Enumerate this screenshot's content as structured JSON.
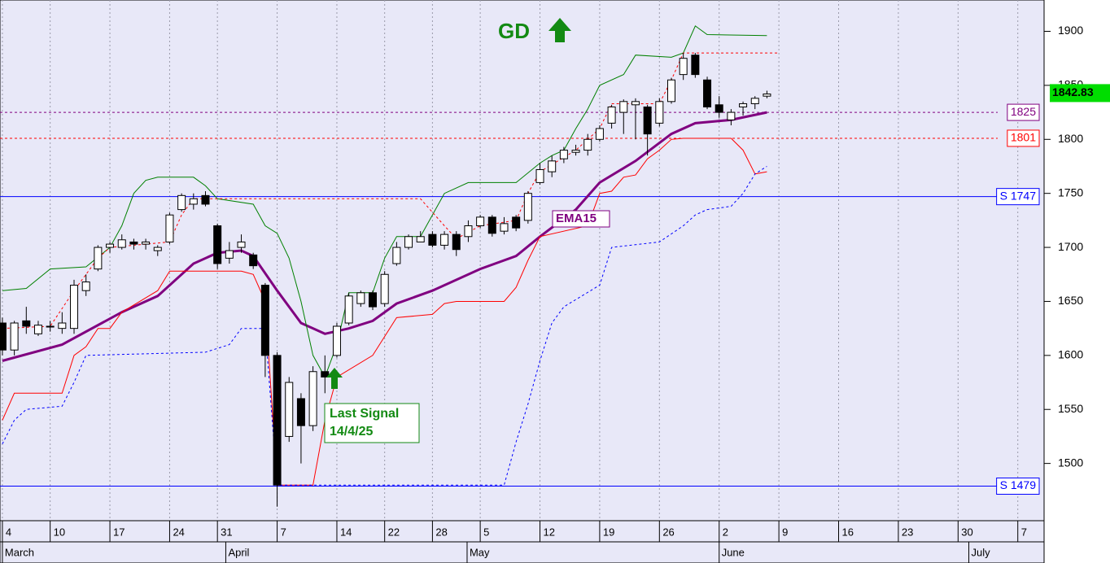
{
  "chart_data": {
    "type": "candlestick",
    "title": "GD",
    "signal_label": [
      "Last Signal",
      "14/4/25"
    ],
    "xlim": [
      -0.2,
      87.2
    ],
    "ylim": [
      1447,
      1929
    ],
    "yticks": [
      1500,
      1550,
      1600,
      1650,
      1700,
      1750,
      1800,
      1850,
      1900
    ],
    "xticks": [
      {
        "value": 0,
        "label": "4"
      },
      {
        "value": 4,
        "label": "10"
      },
      {
        "value": 9,
        "label": "17"
      },
      {
        "value": 14,
        "label": "24"
      },
      {
        "value": 18,
        "label": "31"
      },
      {
        "value": 23,
        "label": "7"
      },
      {
        "value": 28,
        "label": "14"
      },
      {
        "value": 32,
        "label": "22"
      },
      {
        "value": 36,
        "label": "28"
      },
      {
        "value": 40,
        "label": "5"
      },
      {
        "value": 45,
        "label": "12"
      },
      {
        "value": 50,
        "label": "19"
      },
      {
        "value": 55,
        "label": "26"
      },
      {
        "value": 60,
        "label": "2"
      },
      {
        "value": 65,
        "label": "9"
      },
      {
        "value": 70,
        "label": "16"
      },
      {
        "value": 75,
        "label": "23"
      },
      {
        "value": 80,
        "label": "30"
      },
      {
        "value": 85,
        "label": "7"
      }
    ],
    "month_ticks": [
      {
        "value": 0,
        "label": "March"
      },
      {
        "value": 18.7,
        "label": "April"
      },
      {
        "value": 38.9,
        "label": "May"
      },
      {
        "value": 60,
        "label": "June"
      },
      {
        "value": 80.9,
        "label": "July"
      }
    ],
    "grid": true,
    "candles": {
      "x": [
        0,
        1,
        2,
        3,
        4,
        5,
        6,
        7,
        8,
        9,
        10,
        11,
        12,
        13,
        14,
        15,
        16,
        17,
        18,
        19,
        20,
        21,
        22,
        23,
        24,
        25,
        26,
        27,
        28,
        29,
        30,
        31,
        32,
        33,
        34,
        35,
        36,
        37,
        38,
        39,
        40,
        41,
        42,
        43,
        44,
        45,
        46,
        47,
        48,
        49,
        50,
        51,
        52,
        53,
        54,
        55,
        56,
        57,
        58,
        59,
        60,
        61,
        62,
        63,
        64
      ],
      "open": [
        1630,
        1605,
        1632,
        1620,
        1627,
        1625,
        1625,
        1660,
        1680,
        1700,
        1700,
        1705,
        1703,
        1697,
        1705,
        1735,
        1740,
        1748,
        1720,
        1690,
        1700,
        1693,
        1665,
        1600,
        1525,
        1560,
        1535,
        1585,
        1600,
        1630,
        1648,
        1658,
        1648,
        1685,
        1700,
        1705,
        1712,
        1702,
        1712,
        1710,
        1720,
        1728,
        1715,
        1728,
        1725,
        1760,
        1770,
        1782,
        1788,
        1790,
        1800,
        1815,
        1825,
        1832,
        1830,
        1815,
        1835,
        1860,
        1878,
        1855,
        1832,
        1818,
        1830,
        1833,
        1840
      ],
      "high": [
        1635,
        1632,
        1645,
        1632,
        1632,
        1640,
        1670,
        1675,
        1702,
        1705,
        1712,
        1708,
        1708,
        1702,
        1732,
        1750,
        1750,
        1752,
        1722,
        1705,
        1712,
        1695,
        1667,
        1603,
        1580,
        1565,
        1590,
        1600,
        1630,
        1658,
        1660,
        1660,
        1678,
        1705,
        1712,
        1715,
        1715,
        1715,
        1715,
        1725,
        1730,
        1730,
        1728,
        1730,
        1752,
        1778,
        1785,
        1793,
        1795,
        1805,
        1813,
        1832,
        1837,
        1838,
        1832,
        1838,
        1857,
        1880,
        1880,
        1858,
        1840,
        1828,
        1835,
        1840,
        1845
      ],
      "low": [
        1600,
        1600,
        1620,
        1618,
        1622,
        1620,
        1620,
        1655,
        1678,
        1695,
        1698,
        1698,
        1698,
        1692,
        1703,
        1733,
        1735,
        1738,
        1680,
        1685,
        1695,
        1680,
        1580,
        1460,
        1520,
        1500,
        1530,
        1565,
        1598,
        1628,
        1645,
        1642,
        1645,
        1683,
        1698,
        1705,
        1700,
        1698,
        1692,
        1705,
        1718,
        1710,
        1712,
        1715,
        1722,
        1758,
        1765,
        1778,
        1785,
        1785,
        1798,
        1810,
        1805,
        1800,
        1785,
        1812,
        1833,
        1855,
        1857,
        1828,
        1820,
        1813,
        1822,
        1828,
        1838
      ],
      "close": [
        1605,
        1630,
        1627,
        1628,
        1627,
        1630,
        1665,
        1668,
        1700,
        1703,
        1707,
        1703,
        1705,
        1700,
        1730,
        1748,
        1745,
        1740,
        1685,
        1697,
        1705,
        1683,
        1600,
        1480,
        1575,
        1535,
        1585,
        1580,
        1627,
        1655,
        1658,
        1645,
        1675,
        1700,
        1710,
        1710,
        1702,
        1712,
        1698,
        1720,
        1728,
        1713,
        1722,
        1718,
        1750,
        1772,
        1780,
        1790,
        1790,
        1800,
        1810,
        1830,
        1835,
        1835,
        1805,
        1835,
        1855,
        1875,
        1860,
        1830,
        1825,
        1825,
        1833,
        1838,
        1842
      ]
    },
    "lines": [
      {
        "name": "EMA15",
        "color": "#800080",
        "width": 3,
        "dash": "none",
        "x": [
          0,
          5,
          10,
          13,
          16,
          18,
          20,
          21,
          23,
          25,
          27,
          29,
          31,
          33,
          36,
          40,
          43,
          45,
          48,
          50,
          53,
          56,
          58,
          61,
          64
        ],
        "values": [
          1595,
          1610,
          1640,
          1655,
          1685,
          1695,
          1697,
          1692,
          1660,
          1630,
          1620,
          1625,
          1632,
          1648,
          1660,
          1680,
          1692,
          1710,
          1735,
          1760,
          1780,
          1805,
          1815,
          1818,
          1825
        ]
      },
      {
        "color": "#008000",
        "width": 1,
        "dash": "none",
        "x": [
          0,
          2,
          4,
          7,
          9,
          10,
          11,
          12,
          13,
          16,
          17,
          18,
          21,
          22,
          23,
          24,
          25,
          26,
          27,
          28,
          29,
          31,
          32,
          33,
          35,
          36,
          37,
          39,
          43,
          45,
          46,
          47,
          48,
          49,
          50,
          52,
          53,
          56,
          57,
          58,
          59,
          64
        ],
        "values": [
          1660,
          1662,
          1680,
          1682,
          1700,
          1720,
          1750,
          1762,
          1765,
          1765,
          1757,
          1745,
          1740,
          1720,
          1713,
          1690,
          1650,
          1600,
          1580,
          1610,
          1658,
          1658,
          1690,
          1710,
          1710,
          1730,
          1750,
          1760,
          1760,
          1778,
          1785,
          1790,
          1810,
          1828,
          1850,
          1860,
          1878,
          1876,
          1880,
          1905,
          1897,
          1896
        ]
      },
      {
        "color": "#ff0000",
        "width": 1,
        "dash": "none",
        "x": [
          0,
          1,
          5,
          6,
          7,
          8,
          9,
          10,
          13,
          14,
          20,
          21,
          22,
          23,
          26,
          27,
          28,
          31,
          33,
          36,
          37,
          38,
          42,
          43,
          44,
          45,
          49,
          50,
          51,
          52,
          53,
          54,
          55,
          56,
          57,
          61,
          62,
          63,
          64
        ],
        "values": [
          1540,
          1565,
          1565,
          1600,
          1608,
          1625,
          1625,
          1640,
          1660,
          1678,
          1678,
          1675,
          1650,
          1480,
          1480,
          1540,
          1580,
          1600,
          1635,
          1638,
          1648,
          1650,
          1650,
          1663,
          1688,
          1710,
          1720,
          1750,
          1752,
          1765,
          1767,
          1782,
          1790,
          1800,
          1801,
          1801,
          1790,
          1768,
          1770
        ]
      },
      {
        "color": "#ff0000",
        "width": 1,
        "dash": "3,3",
        "x": [
          0,
          4,
          6,
          8,
          9,
          14,
          15,
          16,
          35,
          37,
          38,
          40,
          43,
          44,
          45,
          48,
          50,
          51,
          55,
          56,
          57,
          65
        ],
        "values": [
          1625,
          1627,
          1660,
          1690,
          1700,
          1705,
          1730,
          1745,
          1745,
          1720,
          1708,
          1720,
          1725,
          1750,
          1770,
          1790,
          1810,
          1833,
          1833,
          1855,
          1880,
          1880
        ]
      },
      {
        "color": "#0000ff",
        "width": 1,
        "dash": "3,3",
        "x": [
          0,
          1,
          2,
          5,
          6,
          7,
          17,
          19,
          20,
          22,
          23,
          42,
          43,
          44,
          45,
          46,
          47,
          50,
          51,
          55,
          57,
          58,
          59,
          61,
          62,
          63,
          64
        ],
        "values": [
          1518,
          1540,
          1550,
          1553,
          1575,
          1600,
          1603,
          1610,
          1625,
          1625,
          1480,
          1480,
          1520,
          1555,
          1595,
          1630,
          1645,
          1665,
          1700,
          1705,
          1720,
          1730,
          1735,
          1738,
          1750,
          1768,
          1775
        ]
      }
    ],
    "levels": [
      {
        "value": 1825,
        "color": "#800080",
        "dash": "3,3"
      },
      {
        "value": 1801,
        "color": "#ff0000",
        "dash": "3,3"
      },
      {
        "value": 1747,
        "label": "S 1747",
        "color": "#0000ff",
        "dash": "none"
      },
      {
        "value": 1479,
        "label": "S 1479",
        "color": "#0000ff",
        "dash": "none"
      }
    ],
    "last_price": 1842.83
  }
}
